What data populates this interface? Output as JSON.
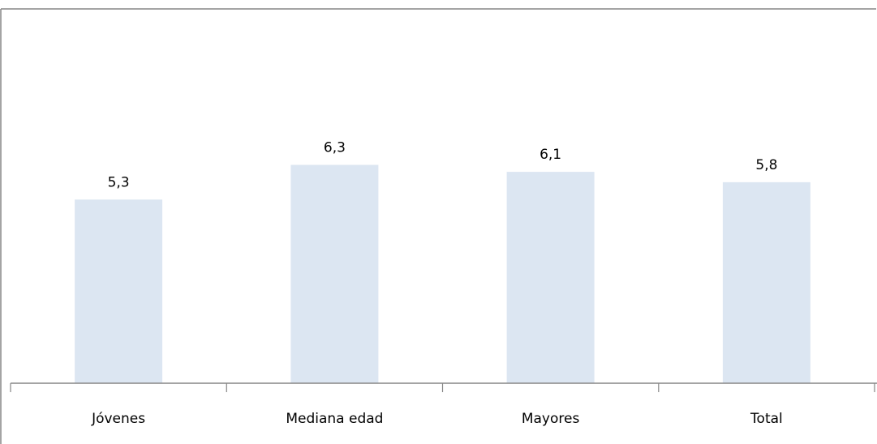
{
  "chart_data": {
    "type": "bar",
    "categories": [
      "Jóvenes",
      "Mediana edad",
      "Mayores",
      "Total"
    ],
    "values": [
      5.3,
      6.3,
      6.1,
      5.8
    ],
    "value_labels": [
      "5,3",
      "6,3",
      "6,1",
      "5,8"
    ],
    "title": "",
    "xlabel": "",
    "ylabel": "",
    "ylim": [
      0,
      10.8
    ],
    "grid": false,
    "legend": "none",
    "bar_color": "#dce6f2",
    "axis_color": "#868686",
    "frame_color": "#868686"
  }
}
